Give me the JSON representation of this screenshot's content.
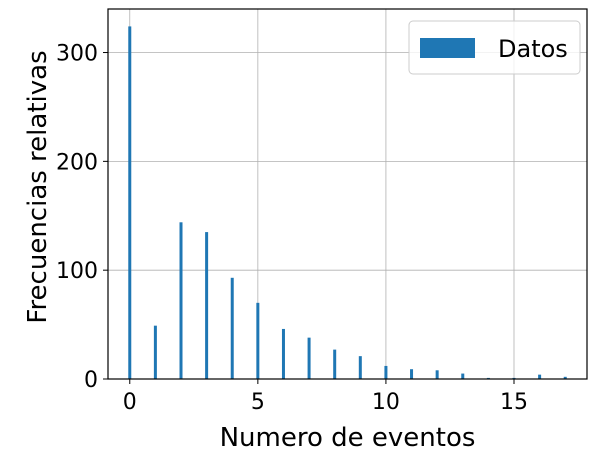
{
  "chart_data": {
    "type": "bar",
    "title": "",
    "xlabel": "Numero de eventos",
    "ylabel": "Frecuencias relativas",
    "x": [
      0,
      1,
      2,
      3,
      4,
      5,
      6,
      7,
      8,
      9,
      10,
      11,
      12,
      13,
      14,
      15,
      16,
      17
    ],
    "series": [
      {
        "name": "Datos",
        "values": [
          324,
          49,
          144,
          135,
          93,
          70,
          46,
          38,
          27,
          21,
          12,
          9,
          8,
          5,
          1,
          1,
          4,
          2
        ]
      }
    ],
    "xlim": [
      -0.85,
      17.85
    ],
    "ylim": [
      0,
      340
    ],
    "xticks": [
      "0",
      "5",
      "10",
      "15"
    ],
    "yticks": [
      "0",
      "100",
      "200",
      "300"
    ],
    "grid": true,
    "legend_position": "top-right",
    "bar_color": "#1f77b4"
  }
}
